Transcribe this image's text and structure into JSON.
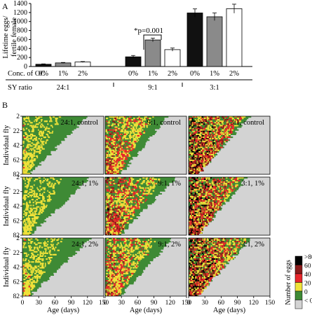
{
  "chart_data": [
    {
      "type": "bar",
      "panel_label": "A",
      "ylabel": "Lifetime eggs/ fertile female",
      "ylabel_lines": [
        "Lifetime eggs/",
        "fertile female"
      ],
      "ylim": [
        0,
        1400
      ],
      "yticks": [
        "0",
        "200",
        "400",
        "600",
        "800",
        "1000",
        "1200",
        "1400"
      ],
      "row_labels": {
        "conc": "Conc. of OC",
        "sy": "SY ratio"
      },
      "groups": [
        "24:1",
        "9:1",
        "3:1"
      ],
      "categories": [
        "0%",
        "1%",
        "2%"
      ],
      "series": [
        {
          "values": [
            50,
            80,
            100
          ],
          "errors": [
            8,
            10,
            10
          ],
          "color": "#111111"
        },
        {
          "values": [
            215,
            590,
            375
          ],
          "errors": [
            30,
            40,
            35
          ],
          "color": "#8a8a8a"
        },
        {
          "values": [
            1190,
            1105,
            1285
          ],
          "errors": [
            90,
            85,
            100
          ],
          "color": "#ffffff"
        }
      ],
      "annotation": "*p=0.001"
    },
    {
      "type": "heatmap",
      "panel_label": "B",
      "xlabel": "Age (days)",
      "ylabel": "Individual fly",
      "xticks": [
        "0",
        "30",
        "60",
        "90",
        "120",
        "150"
      ],
      "yticks": [
        "2",
        "22",
        "42",
        "62",
        "82"
      ],
      "panels": [
        {
          "label": "24:1, control",
          "intensity": 0.12,
          "lifespan": [
            120,
            15
          ]
        },
        {
          "label": "9:1, control",
          "intensity": 0.45,
          "lifespan": [
            115,
            30
          ]
        },
        {
          "label": "3:1, control",
          "intensity": 0.8,
          "lifespan": [
            112,
            20
          ]
        },
        {
          "label": "24:1, 1%",
          "intensity": 0.12,
          "lifespan": [
            125,
            15
          ]
        },
        {
          "label": "9:1, 1%",
          "intensity": 0.55,
          "lifespan": [
            130,
            30
          ]
        },
        {
          "label": "3:1, 1%",
          "intensity": 0.8,
          "lifespan": [
            108,
            20
          ]
        },
        {
          "label": "24:1, 2%",
          "intensity": 0.15,
          "lifespan": [
            125,
            15
          ]
        },
        {
          "label": "9:1, 2%",
          "intensity": 0.45,
          "lifespan": [
            125,
            30
          ]
        },
        {
          "label": "3:1, 2%",
          "intensity": 0.85,
          "lifespan": [
            115,
            18
          ]
        }
      ],
      "legend": {
        "title": "Number of eggs",
        "labels": [
          ">80",
          "60",
          "40",
          "20",
          "0",
          "< 0"
        ],
        "colors": [
          "#000000",
          "#8b1a1a",
          "#e8262b",
          "#f0e23a",
          "#3e8a35",
          "#d3d3d3"
        ]
      }
    }
  ]
}
